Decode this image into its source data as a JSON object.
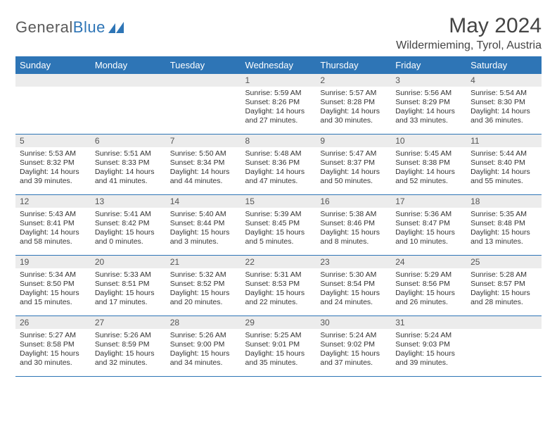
{
  "brand": {
    "name_left": "General",
    "name_right": "Blue"
  },
  "header": {
    "month_title": "May 2024",
    "location": "Wildermieming, Tyrol, Austria"
  },
  "colors": {
    "header_bg": "#2e75b6",
    "header_text": "#ffffff",
    "daynum_bg": "#ececec",
    "rule": "#2e75b6",
    "body_text": "#333333"
  },
  "weekdays": [
    "Sunday",
    "Monday",
    "Tuesday",
    "Wednesday",
    "Thursday",
    "Friday",
    "Saturday"
  ],
  "weeks": [
    [
      {
        "n": "",
        "sr": "",
        "ss": "",
        "dl1": "",
        "dl2": ""
      },
      {
        "n": "",
        "sr": "",
        "ss": "",
        "dl1": "",
        "dl2": ""
      },
      {
        "n": "",
        "sr": "",
        "ss": "",
        "dl1": "",
        "dl2": ""
      },
      {
        "n": "1",
        "sr": "Sunrise: 5:59 AM",
        "ss": "Sunset: 8:26 PM",
        "dl1": "Daylight: 14 hours",
        "dl2": "and 27 minutes."
      },
      {
        "n": "2",
        "sr": "Sunrise: 5:57 AM",
        "ss": "Sunset: 8:28 PM",
        "dl1": "Daylight: 14 hours",
        "dl2": "and 30 minutes."
      },
      {
        "n": "3",
        "sr": "Sunrise: 5:56 AM",
        "ss": "Sunset: 8:29 PM",
        "dl1": "Daylight: 14 hours",
        "dl2": "and 33 minutes."
      },
      {
        "n": "4",
        "sr": "Sunrise: 5:54 AM",
        "ss": "Sunset: 8:30 PM",
        "dl1": "Daylight: 14 hours",
        "dl2": "and 36 minutes."
      }
    ],
    [
      {
        "n": "5",
        "sr": "Sunrise: 5:53 AM",
        "ss": "Sunset: 8:32 PM",
        "dl1": "Daylight: 14 hours",
        "dl2": "and 39 minutes."
      },
      {
        "n": "6",
        "sr": "Sunrise: 5:51 AM",
        "ss": "Sunset: 8:33 PM",
        "dl1": "Daylight: 14 hours",
        "dl2": "and 41 minutes."
      },
      {
        "n": "7",
        "sr": "Sunrise: 5:50 AM",
        "ss": "Sunset: 8:34 PM",
        "dl1": "Daylight: 14 hours",
        "dl2": "and 44 minutes."
      },
      {
        "n": "8",
        "sr": "Sunrise: 5:48 AM",
        "ss": "Sunset: 8:36 PM",
        "dl1": "Daylight: 14 hours",
        "dl2": "and 47 minutes."
      },
      {
        "n": "9",
        "sr": "Sunrise: 5:47 AM",
        "ss": "Sunset: 8:37 PM",
        "dl1": "Daylight: 14 hours",
        "dl2": "and 50 minutes."
      },
      {
        "n": "10",
        "sr": "Sunrise: 5:45 AM",
        "ss": "Sunset: 8:38 PM",
        "dl1": "Daylight: 14 hours",
        "dl2": "and 52 minutes."
      },
      {
        "n": "11",
        "sr": "Sunrise: 5:44 AM",
        "ss": "Sunset: 8:40 PM",
        "dl1": "Daylight: 14 hours",
        "dl2": "and 55 minutes."
      }
    ],
    [
      {
        "n": "12",
        "sr": "Sunrise: 5:43 AM",
        "ss": "Sunset: 8:41 PM",
        "dl1": "Daylight: 14 hours",
        "dl2": "and 58 minutes."
      },
      {
        "n": "13",
        "sr": "Sunrise: 5:41 AM",
        "ss": "Sunset: 8:42 PM",
        "dl1": "Daylight: 15 hours",
        "dl2": "and 0 minutes."
      },
      {
        "n": "14",
        "sr": "Sunrise: 5:40 AM",
        "ss": "Sunset: 8:44 PM",
        "dl1": "Daylight: 15 hours",
        "dl2": "and 3 minutes."
      },
      {
        "n": "15",
        "sr": "Sunrise: 5:39 AM",
        "ss": "Sunset: 8:45 PM",
        "dl1": "Daylight: 15 hours",
        "dl2": "and 5 minutes."
      },
      {
        "n": "16",
        "sr": "Sunrise: 5:38 AM",
        "ss": "Sunset: 8:46 PM",
        "dl1": "Daylight: 15 hours",
        "dl2": "and 8 minutes."
      },
      {
        "n": "17",
        "sr": "Sunrise: 5:36 AM",
        "ss": "Sunset: 8:47 PM",
        "dl1": "Daylight: 15 hours",
        "dl2": "and 10 minutes."
      },
      {
        "n": "18",
        "sr": "Sunrise: 5:35 AM",
        "ss": "Sunset: 8:48 PM",
        "dl1": "Daylight: 15 hours",
        "dl2": "and 13 minutes."
      }
    ],
    [
      {
        "n": "19",
        "sr": "Sunrise: 5:34 AM",
        "ss": "Sunset: 8:50 PM",
        "dl1": "Daylight: 15 hours",
        "dl2": "and 15 minutes."
      },
      {
        "n": "20",
        "sr": "Sunrise: 5:33 AM",
        "ss": "Sunset: 8:51 PM",
        "dl1": "Daylight: 15 hours",
        "dl2": "and 17 minutes."
      },
      {
        "n": "21",
        "sr": "Sunrise: 5:32 AM",
        "ss": "Sunset: 8:52 PM",
        "dl1": "Daylight: 15 hours",
        "dl2": "and 20 minutes."
      },
      {
        "n": "22",
        "sr": "Sunrise: 5:31 AM",
        "ss": "Sunset: 8:53 PM",
        "dl1": "Daylight: 15 hours",
        "dl2": "and 22 minutes."
      },
      {
        "n": "23",
        "sr": "Sunrise: 5:30 AM",
        "ss": "Sunset: 8:54 PM",
        "dl1": "Daylight: 15 hours",
        "dl2": "and 24 minutes."
      },
      {
        "n": "24",
        "sr": "Sunrise: 5:29 AM",
        "ss": "Sunset: 8:56 PM",
        "dl1": "Daylight: 15 hours",
        "dl2": "and 26 minutes."
      },
      {
        "n": "25",
        "sr": "Sunrise: 5:28 AM",
        "ss": "Sunset: 8:57 PM",
        "dl1": "Daylight: 15 hours",
        "dl2": "and 28 minutes."
      }
    ],
    [
      {
        "n": "26",
        "sr": "Sunrise: 5:27 AM",
        "ss": "Sunset: 8:58 PM",
        "dl1": "Daylight: 15 hours",
        "dl2": "and 30 minutes."
      },
      {
        "n": "27",
        "sr": "Sunrise: 5:26 AM",
        "ss": "Sunset: 8:59 PM",
        "dl1": "Daylight: 15 hours",
        "dl2": "and 32 minutes."
      },
      {
        "n": "28",
        "sr": "Sunrise: 5:26 AM",
        "ss": "Sunset: 9:00 PM",
        "dl1": "Daylight: 15 hours",
        "dl2": "and 34 minutes."
      },
      {
        "n": "29",
        "sr": "Sunrise: 5:25 AM",
        "ss": "Sunset: 9:01 PM",
        "dl1": "Daylight: 15 hours",
        "dl2": "and 35 minutes."
      },
      {
        "n": "30",
        "sr": "Sunrise: 5:24 AM",
        "ss": "Sunset: 9:02 PM",
        "dl1": "Daylight: 15 hours",
        "dl2": "and 37 minutes."
      },
      {
        "n": "31",
        "sr": "Sunrise: 5:24 AM",
        "ss": "Sunset: 9:03 PM",
        "dl1": "Daylight: 15 hours",
        "dl2": "and 39 minutes."
      },
      {
        "n": "",
        "sr": "",
        "ss": "",
        "dl1": "",
        "dl2": ""
      }
    ]
  ]
}
